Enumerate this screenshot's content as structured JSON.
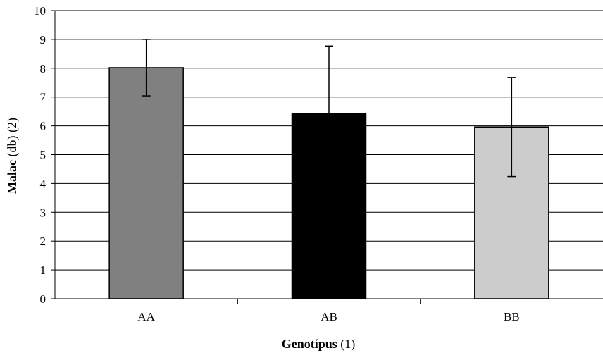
{
  "chart_data": {
    "type": "bar",
    "categories": [
      "AA",
      "AB",
      "BB"
    ],
    "values": [
      8.02,
      6.42,
      5.96
    ],
    "error": [
      0.98,
      2.35,
      1.72
    ],
    "colors": [
      "#808080",
      "#000000",
      "#cccccc"
    ],
    "xlabel_bold": "Genotípus",
    "xlabel_rest": " (1)",
    "ylabel_bold": "Malac",
    "ylabel_rest": " (db) (2)",
    "ylim": [
      0,
      10
    ],
    "yticks": [
      "0",
      "1",
      "2",
      "3",
      "4",
      "5",
      "6",
      "7",
      "8",
      "9",
      "10"
    ],
    "grid": true
  }
}
